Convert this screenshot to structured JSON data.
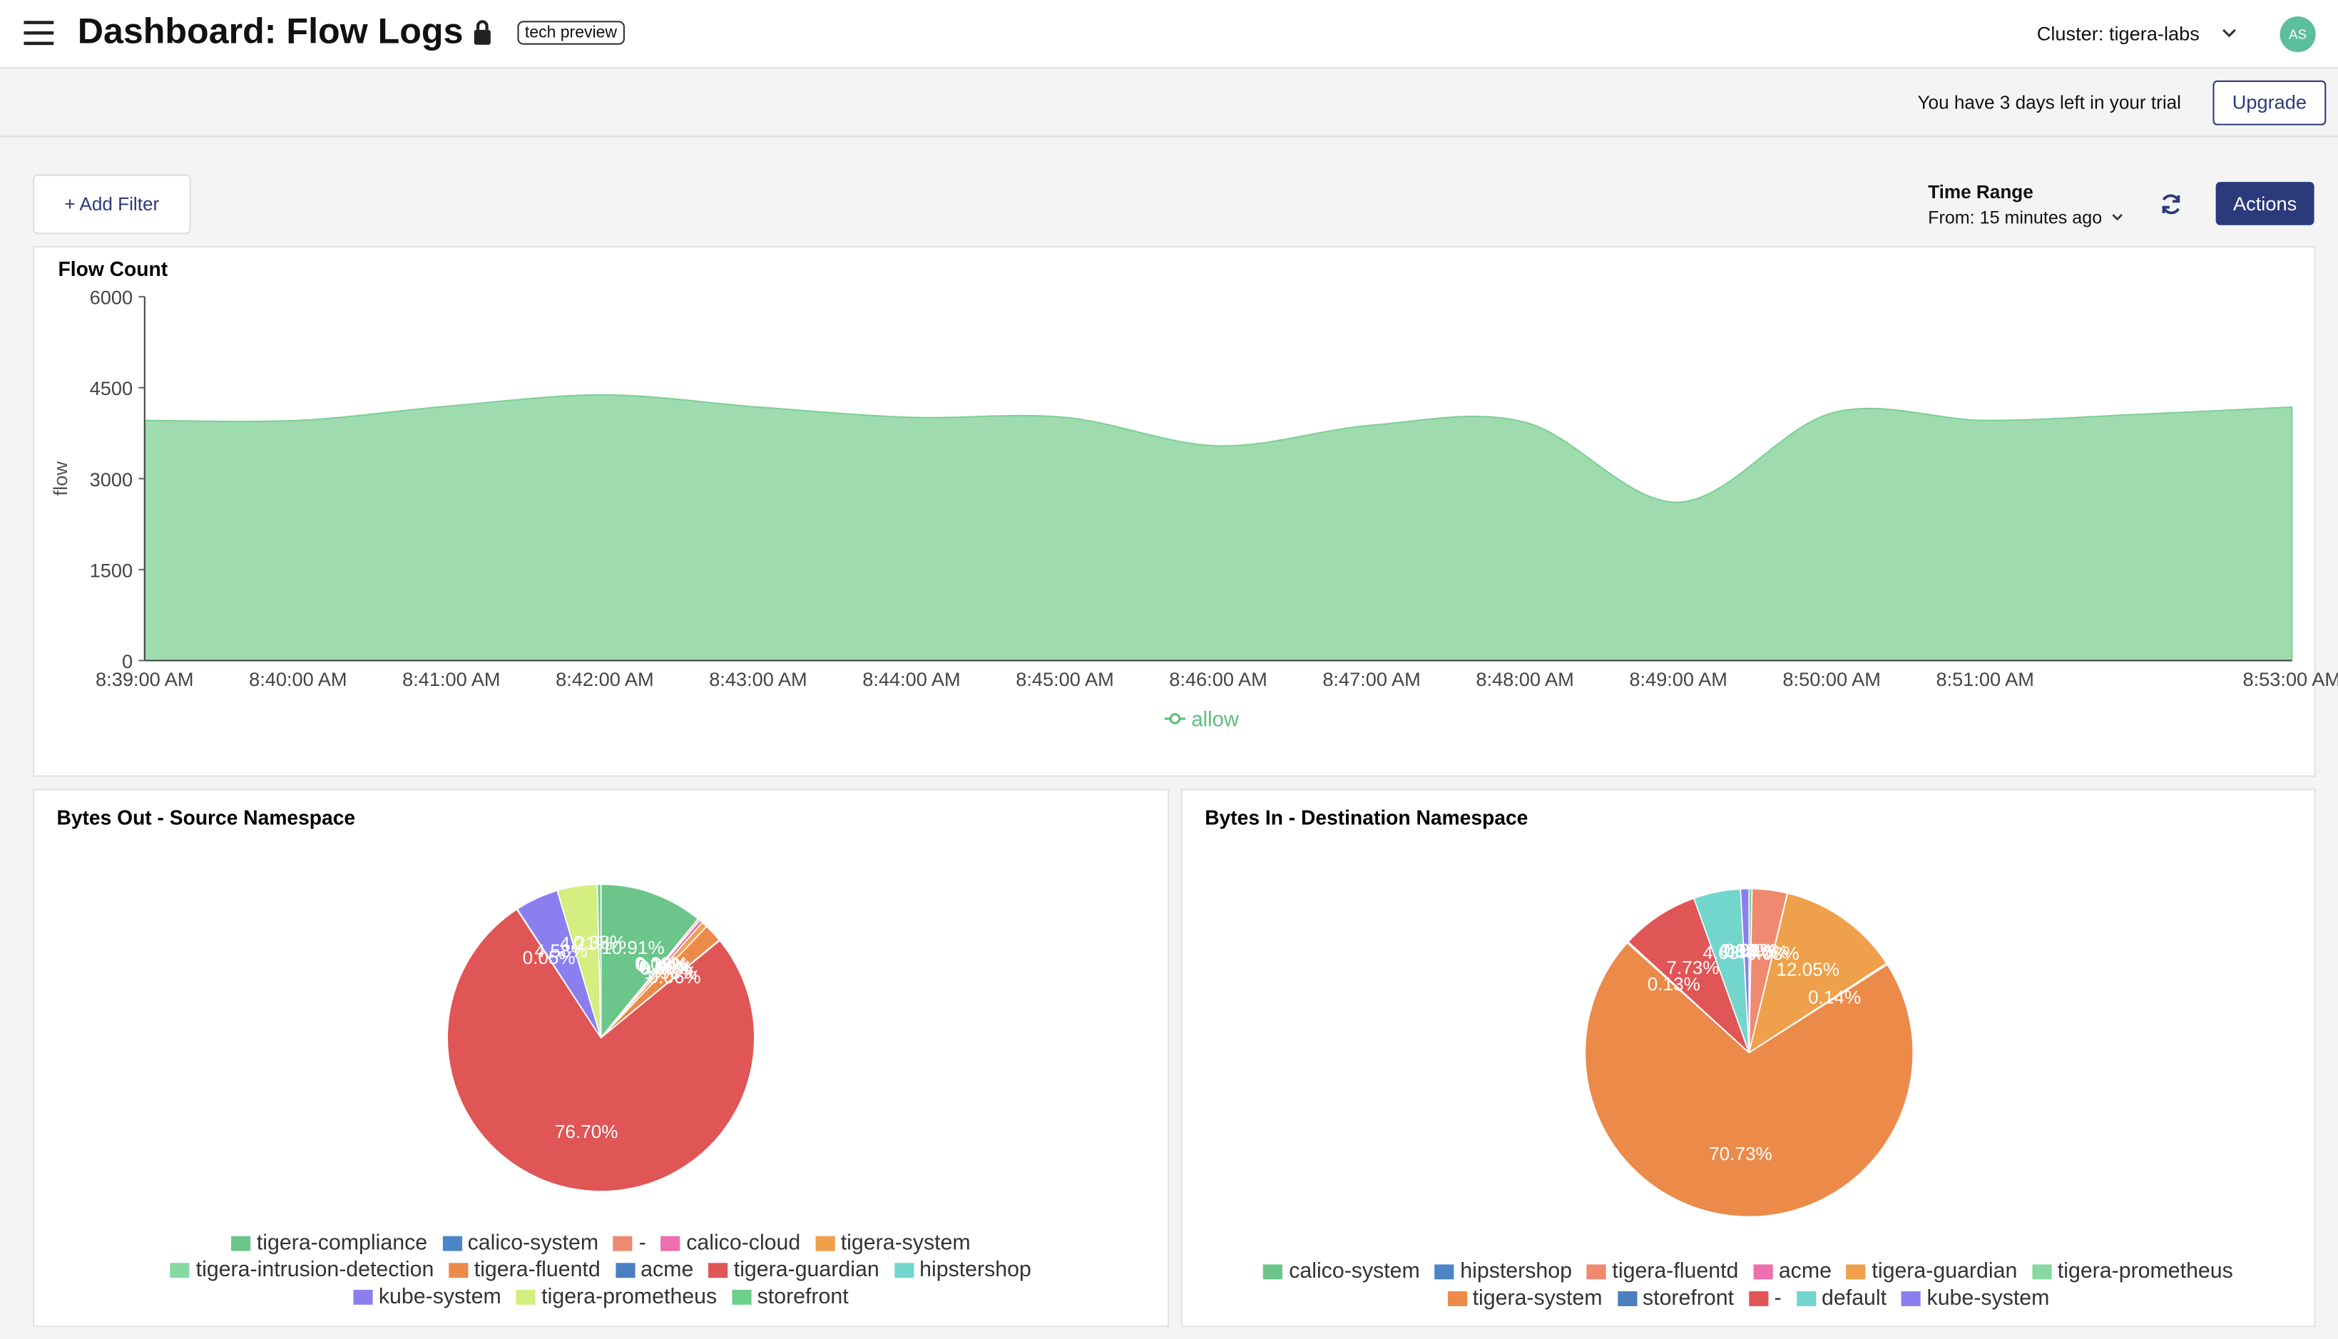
{
  "header": {
    "title": "Dashboard: Flow Logs",
    "badge": "tech preview",
    "cluster": "Cluster: tigera-labs",
    "avatar": "AS"
  },
  "trial": {
    "message": "You have 3 days left in your trial",
    "button": "Upgrade"
  },
  "toolbar": {
    "add_filter": "+ Add Filter",
    "time_range_label": "Time Range",
    "time_range_value": "From: 15 minutes ago",
    "actions": "Actions"
  },
  "chart_data": [
    {
      "type": "area",
      "title": "Flow Count",
      "y_label": "flow",
      "categories": [
        "8:39:00 AM",
        "8:40:00 AM",
        "8:41:00 AM",
        "8:42:00 AM",
        "8:43:00 AM",
        "8:44:00 AM",
        "8:45:00 AM",
        "8:46:00 AM",
        "8:47:00 AM",
        "8:48:00 AM",
        "8:49:00 AM",
        "8:50:00 AM",
        "8:51:00 AM",
        null,
        "8:53:00 AM"
      ],
      "series": [
        {
          "name": "allow",
          "color": "#9edcb0",
          "values": [
            3960,
            3960,
            4200,
            4380,
            4180,
            4010,
            4010,
            3540,
            3880,
            3930,
            2610,
            4080,
            3960,
            4060,
            4180
          ]
        }
      ],
      "ylim": [
        0,
        6000
      ],
      "yticks": [
        0,
        1500,
        3000,
        4500,
        6000
      ]
    },
    {
      "type": "pie",
      "title": "Bytes Out - Source Namespace",
      "categories": [
        "tigera-compliance",
        "calico-system",
        "-",
        "calico-cloud",
        "tigera-system",
        "tigera-intrusion-detection",
        "tigera-fluentd",
        "acme",
        "tigera-guardian",
        "hipstershop",
        "kube-system",
        "tigera-prometheus",
        "storefront"
      ],
      "values": [
        10.91,
        0.03,
        0.19,
        0.36,
        0.6,
        0.0,
        1.93,
        0.06,
        76.7,
        0.05,
        4.58,
        4.21,
        0.38
      ],
      "value_labels": [
        "10.91%",
        "0.03%",
        "0.19%",
        "0.36%",
        "0.60%",
        "0.00%",
        "1.93%",
        "0.06%",
        "76.70%",
        "0.05%",
        "4.58%",
        "4.21%",
        "0.38%"
      ],
      "colors": [
        "#6cc58a",
        "#4a86c5",
        "#ef8a70",
        "#ee6fae",
        "#eea04a",
        "#86d9a3",
        "#ec8a4a",
        "#4a7fc0",
        "#e05555",
        "#72d6cc",
        "#8b7ff0",
        "#d4ee7f",
        "#6ccf8a"
      ]
    },
    {
      "type": "pie",
      "title": "Bytes In - Destination Namespace",
      "categories": [
        "calico-system",
        "hipstershop",
        "tigera-fluentd",
        "acme",
        "tigera-guardian",
        "tigera-prometheus",
        "tigera-system",
        "storefront",
        "-",
        "default",
        "kube-system"
      ],
      "values": [
        0.28,
        0.01,
        3.46,
        0.03,
        12.05,
        0.14,
        70.73,
        0.13,
        7.73,
        4.63,
        0.83
      ],
      "value_labels": [
        "0.28%",
        "0.01%",
        "3.46%",
        "0.03%",
        "12.05%",
        "0.14%",
        "70.73%",
        "0.13%",
        "7.73%",
        "4.63%",
        "0.83%"
      ],
      "colors": [
        "#6cc58a",
        "#4a86c5",
        "#ef8a70",
        "#ee6fae",
        "#eea04a",
        "#86d9a3",
        "#ec8a4a",
        "#4a7fc0",
        "#e05555",
        "#72d6cc",
        "#8b7ff0"
      ]
    }
  ]
}
